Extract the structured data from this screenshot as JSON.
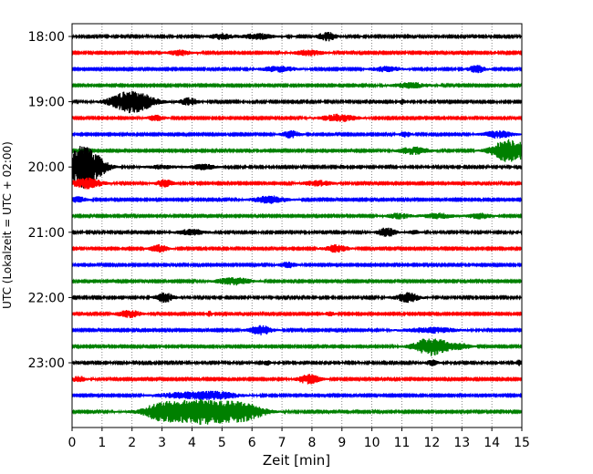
{
  "chart_data": {
    "type": "line",
    "title": "",
    "xlabel": "Zeit  [min]",
    "ylabel": "UTC (Lokalzeit = UTC + 02:00)",
    "xlim": [
      0,
      15
    ],
    "x_ticks": [
      0,
      1,
      2,
      3,
      4,
      5,
      6,
      7,
      8,
      9,
      10,
      11,
      12,
      13,
      14,
      15
    ],
    "y_ticks": [
      "18:00",
      "19:00",
      "20:00",
      "21:00",
      "22:00",
      "23:00"
    ],
    "grid": "x-dotted",
    "colors": [
      "#000000",
      "#ff0000",
      "#0000ff",
      "#008000"
    ],
    "series": [
      {
        "label": "18:00",
        "color": "#000000",
        "noise": 0.9,
        "events": [
          [
            5.0,
            0.4,
            3
          ],
          [
            6.2,
            0.5,
            3
          ],
          [
            8.5,
            0.3,
            5
          ]
        ]
      },
      {
        "label": "18:15",
        "color": "#ff0000",
        "noise": 0.8,
        "events": [
          [
            3.6,
            0.4,
            3
          ],
          [
            7.9,
            0.5,
            3
          ]
        ]
      },
      {
        "label": "18:30",
        "color": "#0000ff",
        "noise": 0.8,
        "events": [
          [
            6.9,
            0.6,
            3
          ],
          [
            10.5,
            0.5,
            3
          ],
          [
            13.5,
            0.3,
            4
          ]
        ]
      },
      {
        "label": "18:45",
        "color": "#008000",
        "noise": 0.8,
        "events": [
          [
            11.3,
            0.6,
            3
          ]
        ]
      },
      {
        "label": "19:00",
        "color": "#000000",
        "noise": 0.9,
        "events": [
          [
            2.0,
            0.7,
            12
          ],
          [
            3.9,
            0.3,
            4
          ],
          [
            11.0,
            0.1,
            3
          ]
        ]
      },
      {
        "label": "19:15",
        "color": "#ff0000",
        "noise": 0.8,
        "events": [
          [
            2.8,
            0.3,
            3
          ],
          [
            8.9,
            0.6,
            4
          ]
        ]
      },
      {
        "label": "19:30",
        "color": "#0000ff",
        "noise": 0.8,
        "events": [
          [
            7.3,
            0.3,
            4
          ],
          [
            11.1,
            0.2,
            3
          ],
          [
            14.2,
            0.5,
            4
          ]
        ]
      },
      {
        "label": "19:45",
        "color": "#008000",
        "noise": 0.8,
        "events": [
          [
            11.4,
            0.5,
            4
          ],
          [
            14.6,
            0.6,
            13
          ]
        ]
      },
      {
        "label": "20:00",
        "color": "#000000",
        "noise": 0.9,
        "events": [
          [
            0.4,
            0.6,
            24
          ],
          [
            3.0,
            0.5,
            2
          ],
          [
            4.4,
            0.4,
            3
          ],
          [
            9.0,
            0.1,
            2
          ]
        ]
      },
      {
        "label": "20:15",
        "color": "#ff0000",
        "noise": 0.8,
        "events": [
          [
            0.5,
            0.5,
            6
          ],
          [
            3.1,
            0.3,
            4
          ],
          [
            8.2,
            0.5,
            3
          ]
        ]
      },
      {
        "label": "20:30",
        "color": "#0000ff",
        "noise": 0.8,
        "events": [
          [
            0.2,
            0.3,
            3
          ],
          [
            6.6,
            0.6,
            4
          ]
        ]
      },
      {
        "label": "20:45",
        "color": "#008000",
        "noise": 0.8,
        "events": [
          [
            10.9,
            0.4,
            3
          ],
          [
            12.2,
            0.5,
            3
          ],
          [
            13.6,
            0.4,
            3
          ]
        ]
      },
      {
        "label": "21:00",
        "color": "#000000",
        "noise": 0.9,
        "events": [
          [
            4.0,
            0.5,
            3
          ],
          [
            10.5,
            0.3,
            5
          ],
          [
            11.4,
            0.2,
            2
          ]
        ]
      },
      {
        "label": "21:15",
        "color": "#ff0000",
        "noise": 0.8,
        "events": [
          [
            2.9,
            0.3,
            4
          ],
          [
            8.8,
            0.4,
            4
          ]
        ]
      },
      {
        "label": "21:30",
        "color": "#0000ff",
        "noise": 0.8,
        "events": [
          [
            7.2,
            0.3,
            3
          ]
        ]
      },
      {
        "label": "21:45",
        "color": "#008000",
        "noise": 0.8,
        "events": [
          [
            5.4,
            0.6,
            4
          ]
        ]
      },
      {
        "label": "22:00",
        "color": "#000000",
        "noise": 0.9,
        "events": [
          [
            3.1,
            0.3,
            5
          ],
          [
            11.2,
            0.4,
            5
          ]
        ]
      },
      {
        "label": "22:15",
        "color": "#ff0000",
        "noise": 0.8,
        "events": [
          [
            1.9,
            0.4,
            4
          ],
          [
            4.6,
            0.1,
            3
          ],
          [
            8.6,
            0.2,
            2
          ]
        ]
      },
      {
        "label": "22:30",
        "color": "#0000ff",
        "noise": 0.8,
        "events": [
          [
            6.3,
            0.4,
            5
          ],
          [
            12.0,
            0.9,
            3
          ]
        ]
      },
      {
        "label": "22:45",
        "color": "#008000",
        "noise": 0.8,
        "events": [
          [
            12.0,
            0.6,
            10
          ],
          [
            13.0,
            0.3,
            3
          ]
        ]
      },
      {
        "label": "23:00",
        "color": "#000000",
        "noise": 0.9,
        "events": [
          [
            6.5,
            0.1,
            3
          ],
          [
            12.0,
            0.2,
            3
          ],
          [
            14.9,
            0.1,
            3
          ]
        ]
      },
      {
        "label": "23:15",
        "color": "#ff0000",
        "noise": 0.8,
        "events": [
          [
            0.2,
            0.3,
            3
          ],
          [
            7.9,
            0.4,
            5
          ]
        ]
      },
      {
        "label": "23:30",
        "color": "#0000ff",
        "noise": 0.8,
        "events": [
          [
            3.6,
            0.8,
            3
          ],
          [
            4.8,
            0.8,
            4
          ]
        ]
      },
      {
        "label": "23:45",
        "color": "#008000",
        "noise": 0.8,
        "events": [
          [
            4.3,
            1.4,
            14
          ],
          [
            2.9,
            0.5,
            5
          ],
          [
            5.8,
            0.6,
            6
          ]
        ]
      }
    ]
  }
}
